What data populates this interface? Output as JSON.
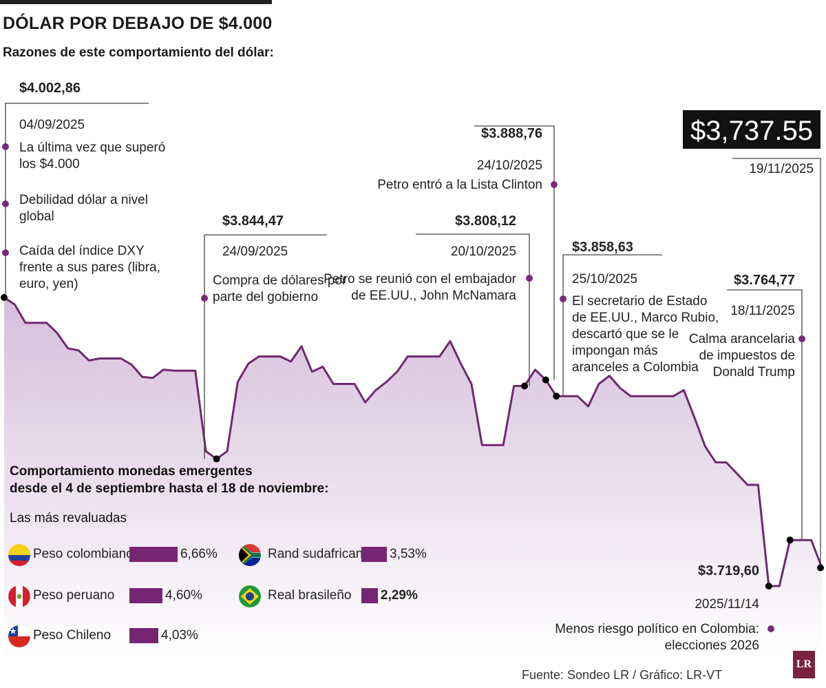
{
  "header": {
    "title": "DÓLAR POR DEBAJO DE $4.000",
    "subtitle": "Razones de este comportamiento del dólar:"
  },
  "colors": {
    "line": "#6e2a6e",
    "fill_top": "#d9c2dd",
    "marker": "#7a2a78",
    "bar": "#762572",
    "highlight_bg": "#111111"
  },
  "chart_data": {
    "type": "area",
    "ylabel": "",
    "xlabel": "",
    "ylim": [
      3680,
      4040
    ],
    "series_values": [
      4002.86,
      3996,
      3978,
      3978,
      3978,
      3968,
      3953,
      3951,
      3941,
      3943,
      3943,
      3943,
      3937,
      3925,
      3924,
      3932,
      3931,
      3931,
      3931,
      3852,
      3844.47,
      3852,
      3920,
      3938,
      3945,
      3945,
      3945,
      3940,
      3955,
      3930,
      3935,
      3918,
      3918,
      3918,
      3900,
      3912,
      3920,
      3930,
      3945,
      3945,
      3945,
      3945,
      3960,
      3938,
      3918,
      3858,
      3858,
      3858,
      3916,
      3916,
      3932,
      3922,
      3906,
      3906,
      3906,
      3896,
      3918,
      3926,
      3914,
      3906,
      3906,
      3906,
      3906,
      3906,
      3912,
      3885,
      3857,
      3841,
      3841,
      3830,
      3819,
      3819,
      3719.6,
      3719.6,
      3764.77,
      3764.77,
      3764.77,
      3737.55
    ],
    "annotations": [
      {
        "value": "$4.002,86",
        "date": "04/09/2025",
        "notes": [
          "La última vez que  superó los $4.000",
          "Debilidad dólar a nivel global",
          "Caída del índice DXY frente a sus pares (libra, euro, yen)"
        ]
      },
      {
        "value": "$3.844,47",
        "date": "24/09/2025",
        "notes": [
          "Compra de dólares por parte del gobierno"
        ]
      },
      {
        "value": "$3.808,12",
        "date": "20/10/2025",
        "notes": [
          "Petro se reunió con el embajador de EE.UU., John McNamara"
        ]
      },
      {
        "value": "$3.888,76",
        "date": "24/10/2025",
        "notes": [
          "Petro entró a la Lista Clinton"
        ]
      },
      {
        "value": "$3.858,63",
        "date": "25/10/2025",
        "notes": [
          "El secretario de Estado de EE.UU., Marco Rubio, descartó que se le impongan más aranceles a Colombia"
        ]
      },
      {
        "value": "$3.719,60",
        "date": "2025/11/14",
        "notes": [
          "Menos riesgo político en Colombia: elecciones 2026"
        ]
      },
      {
        "value": "$3.764,77",
        "date": "18/11/2025",
        "notes": [
          "Calma arancelaria de impuestos de Donald Trump"
        ]
      },
      {
        "value": "$3,737.55",
        "date": "19/11/2025",
        "notes": []
      }
    ]
  },
  "currencies": {
    "title_line1": "Comportamiento monedas emergentes",
    "title_line2": "desde el 4 de septiembre hasta el 18 de noviembre:",
    "subtitle": "Las más revaluadas",
    "items": [
      {
        "name": "Peso colombiano",
        "pct": "6,66%",
        "value": 6.66
      },
      {
        "name": "Peso peruano",
        "pct": "4,60%",
        "value": 4.6
      },
      {
        "name": "Peso Chileno",
        "pct": "4,03%",
        "value": 4.03
      },
      {
        "name": "Rand sudafricano",
        "pct": "3,53%",
        "value": 3.53
      },
      {
        "name": "Real brasileño",
        "pct": "2,29%",
        "value": 2.29
      }
    ]
  },
  "footer": {
    "source": "Fuente: Sondeo LR / Gráfico: LR-VT",
    "logo": "LR"
  }
}
